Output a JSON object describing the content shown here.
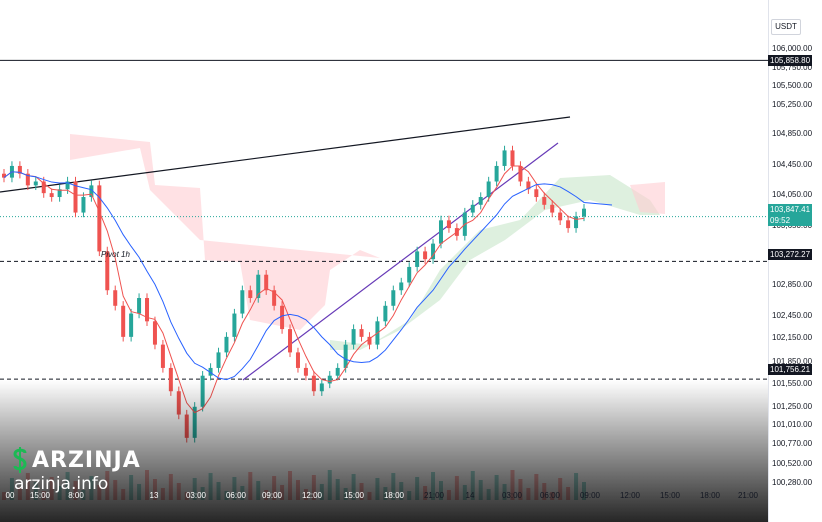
{
  "currency": "USDT",
  "price_ticks": [
    "106,000.00",
    "105,750.00",
    "105,500.00",
    "105,250.00",
    "104,850.00",
    "104,450.00",
    "104,050.00",
    "103,650.00",
    "102,850.00",
    "102,450.00",
    "102,150.00",
    "101,850.00",
    "101,550.00",
    "101,250.00",
    "101,010.00",
    "100,770.00",
    "100,520.00",
    "100,280.00"
  ],
  "price_labels": {
    "top_line": "105,858.80",
    "last_price": "103,847.41",
    "countdown": "09:52",
    "pivot_line": "103,272.27",
    "bottom_line": "101,756.21"
  },
  "time_ticks": [
    "00",
    "15:00",
    "8:00",
    "13",
    "03:00",
    "06:00",
    "09:00",
    "12:00",
    "15:00",
    "18:00",
    "21:00",
    "14",
    "03:00",
    "06:00",
    "09:00",
    "12:00",
    "15:00",
    "18:00",
    "21:00"
  ],
  "pivot_text": "Pivot 1h",
  "brand": {
    "name": "ARZINJA",
    "url": "arzinja.info"
  },
  "colors": {
    "up": "#26a69a",
    "down": "#ef5350",
    "tenkan": "#ef5350",
    "kijun": "#2962ff",
    "trend": "#673ab7",
    "cloud_up": "#c8e6c9",
    "cloud_down": "#ffcdd2"
  },
  "chart_data": {
    "type": "candlestick",
    "symbol_quote": "USDT",
    "ylim": [
      100200,
      106250
    ],
    "horizontal_levels": [
      105858.8,
      103272.27,
      101756.21
    ],
    "last_price": 103847.41,
    "closes": [
      104350,
      104500,
      104400,
      104250,
      104300,
      104150,
      104100,
      104200,
      104300,
      103900,
      104100,
      104250,
      103400,
      102900,
      102700,
      102300,
      102600,
      102800,
      102500,
      102200,
      101900,
      101600,
      101300,
      101000,
      101400,
      101800,
      101900,
      102100,
      102300,
      102600,
      102900,
      102800,
      103100,
      102900,
      102700,
      102400,
      102100,
      101900,
      101800,
      101600,
      101700,
      101800,
      101900,
      102200,
      102400,
      102300,
      102200,
      102500,
      102700,
      102900,
      103000,
      103200,
      103400,
      103300,
      103500,
      103800,
      103700,
      103600,
      103900,
      104000,
      104100,
      104300,
      104500,
      104700,
      104500,
      104300,
      104200,
      104100,
      104000,
      103900,
      103800,
      103700,
      103850,
      103950
    ]
  }
}
